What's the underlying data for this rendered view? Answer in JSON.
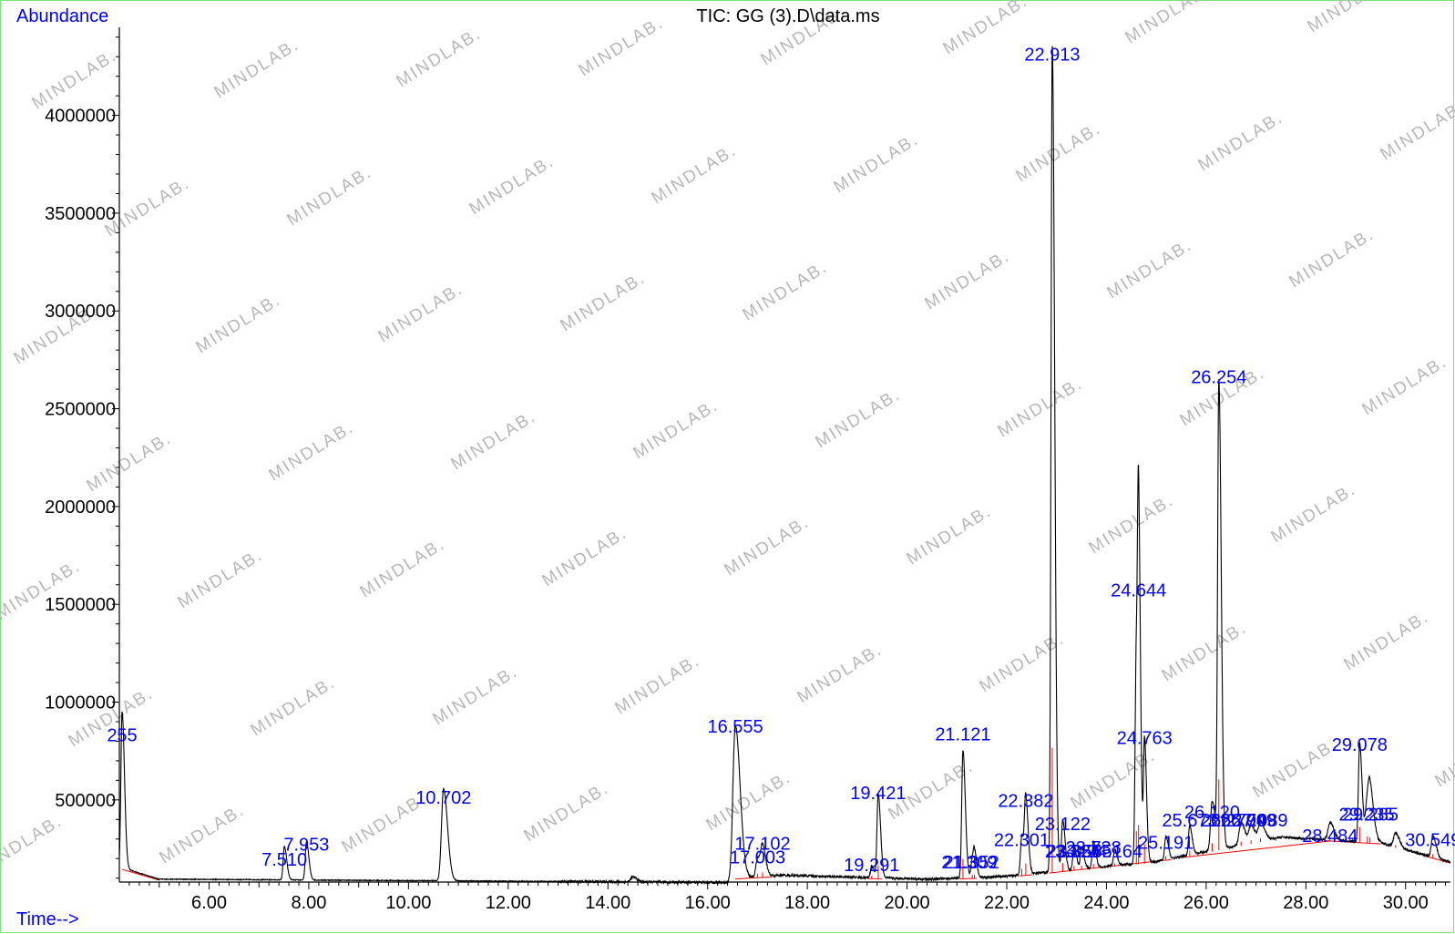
{
  "chart_data": {
    "type": "line",
    "title": "TIC: GG (3).D\\data.ms",
    "ylabel": "Abundance",
    "xlabel": "Time-->",
    "xlim": [
      4.2,
      30.9
    ],
    "ylim": [
      80000,
      4450000
    ],
    "x_ticks": [
      6.0,
      8.0,
      10.0,
      12.0,
      14.0,
      16.0,
      18.0,
      20.0,
      22.0,
      24.0,
      26.0,
      28.0,
      30.0
    ],
    "x_tick_labels": [
      "6.00",
      "8.00",
      "10.00",
      "12.00",
      "14.00",
      "16.00",
      "18.00",
      "20.00",
      "22.00",
      "24.00",
      "26.00",
      "28.00",
      "30.00"
    ],
    "y_ticks": [
      500000,
      1000000,
      1500000,
      2000000,
      2500000,
      3000000,
      3500000,
      4000000
    ],
    "y_tick_labels": [
      "500000",
      "1000000",
      "1500000",
      "2000000",
      "2500000",
      "3000000",
      "3500000",
      "4000000"
    ],
    "watermark": "MINDLAB.",
    "series": [
      {
        "color": "#000000",
        "peaks": [
          {
            "x": 4.255,
            "y": 800000,
            "w": 0.03
          },
          {
            "x": 7.51,
            "y": 170000,
            "w": 0.03
          },
          {
            "x": 7.953,
            "y": 195000,
            "w": 0.03
          },
          {
            "x": 10.702,
            "y": 470000,
            "w": 0.05
          },
          {
            "x": 14.5,
            "y": 25000,
            "w": 0.05
          },
          {
            "x": 16.555,
            "y": 780000,
            "w": 0.06
          },
          {
            "x": 17.003,
            "y": 100000,
            "w": 0.04
          },
          {
            "x": 17.102,
            "y": 140000,
            "w": 0.04
          },
          {
            "x": 19.291,
            "y": 60000,
            "w": 0.03
          },
          {
            "x": 19.421,
            "y": 430000,
            "w": 0.03
          },
          {
            "x": 21.121,
            "y": 650000,
            "w": 0.03
          },
          {
            "x": 21.309,
            "y": 90000,
            "w": 0.03
          },
          {
            "x": 21.352,
            "y": 95000,
            "w": 0.03
          },
          {
            "x": 22.301,
            "y": 200000,
            "w": 0.03
          },
          {
            "x": 22.382,
            "y": 370000,
            "w": 0.03
          },
          {
            "x": 22.913,
            "y": 4220000,
            "w": 0.03
          },
          {
            "x": 23.122,
            "y": 260000,
            "w": 0.03
          },
          {
            "x": 23.35,
            "y": 120000,
            "w": 0.03
          },
          {
            "x": 23.5,
            "y": 110000,
            "w": 0.03
          },
          {
            "x": 23.738,
            "y": 130000,
            "w": 0.03
          },
          {
            "x": 24.164,
            "y": 80000,
            "w": 0.03
          },
          {
            "x": 24.6,
            "y": 1100000,
            "w": 0.03
          },
          {
            "x": 24.644,
            "y": 1300000,
            "w": 0.025
          },
          {
            "x": 24.763,
            "y": 630000,
            "w": 0.025
          },
          {
            "x": 25.191,
            "y": 120000,
            "w": 0.03
          },
          {
            "x": 25.67,
            "y": 150000,
            "w": 0.03
          },
          {
            "x": 26.12,
            "y": 250000,
            "w": 0.04
          },
          {
            "x": 26.254,
            "y": 2380000,
            "w": 0.03
          },
          {
            "x": 26.7,
            "y": 110000,
            "w": 0.05
          },
          {
            "x": 26.9,
            "y": 90000,
            "w": 0.05
          },
          {
            "x": 27.089,
            "y": 100000,
            "w": 0.05
          },
          {
            "x": 28.484,
            "y": 90000,
            "w": 0.05
          },
          {
            "x": 29.078,
            "y": 500000,
            "w": 0.03
          },
          {
            "x": 29.235,
            "y": 190000,
            "w": 0.05
          },
          {
            "x": 29.285,
            "y": 170000,
            "w": 0.05
          },
          {
            "x": 29.8,
            "y": 70000,
            "w": 0.05
          },
          {
            "x": 30.549,
            "y": 110000,
            "w": 0.04
          }
        ]
      }
    ],
    "peak_labels": [
      {
        "text": "255",
        "x": 4.255,
        "y": 800000
      },
      {
        "text": "7.510",
        "x": 7.51,
        "y": 165000
      },
      {
        "text": "7.953",
        "x": 7.953,
        "y": 240000
      },
      {
        "text": "10.702",
        "x": 10.702,
        "y": 480000
      },
      {
        "text": "16.555",
        "x": 16.555,
        "y": 845000
      },
      {
        "text": "17.003",
        "x": 17.003,
        "y": 175000
      },
      {
        "text": "17.102",
        "x": 17.102,
        "y": 245000
      },
      {
        "text": "19.291",
        "x": 19.291,
        "y": 135000
      },
      {
        "text": "19.421",
        "x": 19.421,
        "y": 505000
      },
      {
        "text": "21.121",
        "x": 21.121,
        "y": 805000
      },
      {
        "text": "21.309",
        "x": 21.25,
        "y": 150000
      },
      {
        "text": "21.352",
        "x": 21.29,
        "y": 150000
      },
      {
        "text": "22.301",
        "x": 22.301,
        "y": 265000
      },
      {
        "text": "22.382",
        "x": 22.382,
        "y": 465000
      },
      {
        "text": "22.913",
        "x": 22.913,
        "y": 4280000
      },
      {
        "text": "23.122",
        "x": 23.122,
        "y": 345000
      },
      {
        "text": "23.324",
        "x": 23.324,
        "y": 205000
      },
      {
        "text": "23.358",
        "x": 23.358,
        "y": 205000
      },
      {
        "text": "23.555",
        "x": 23.555,
        "y": 205000
      },
      {
        "text": "23.738",
        "x": 23.738,
        "y": 225000
      },
      {
        "text": "24.164",
        "x": 24.164,
        "y": 205000
      },
      {
        "text": "24.644",
        "x": 24.644,
        "y": 1540000
      },
      {
        "text": "24.763",
        "x": 24.763,
        "y": 785000
      },
      {
        "text": "25.191",
        "x": 25.191,
        "y": 250000
      },
      {
        "text": "25.673",
        "x": 25.673,
        "y": 365000
      },
      {
        "text": "26.120",
        "x": 26.12,
        "y": 405000
      },
      {
        "text": "26.254",
        "x": 26.254,
        "y": 2630000
      },
      {
        "text": "26.277",
        "x": 26.45,
        "y": 365000
      },
      {
        "text": "26.704",
        "x": 26.65,
        "y": 365000
      },
      {
        "text": "26.909",
        "x": 26.85,
        "y": 365000
      },
      {
        "text": "27.089",
        "x": 27.08,
        "y": 365000
      },
      {
        "text": "28.484",
        "x": 28.484,
        "y": 285000
      },
      {
        "text": "29.078",
        "x": 29.078,
        "y": 750000
      },
      {
        "text": "29.235",
        "x": 29.22,
        "y": 395000
      },
      {
        "text": "29.285",
        "x": 29.3,
        "y": 395000
      },
      {
        "text": "30.549",
        "x": 30.549,
        "y": 265000
      }
    ]
  }
}
